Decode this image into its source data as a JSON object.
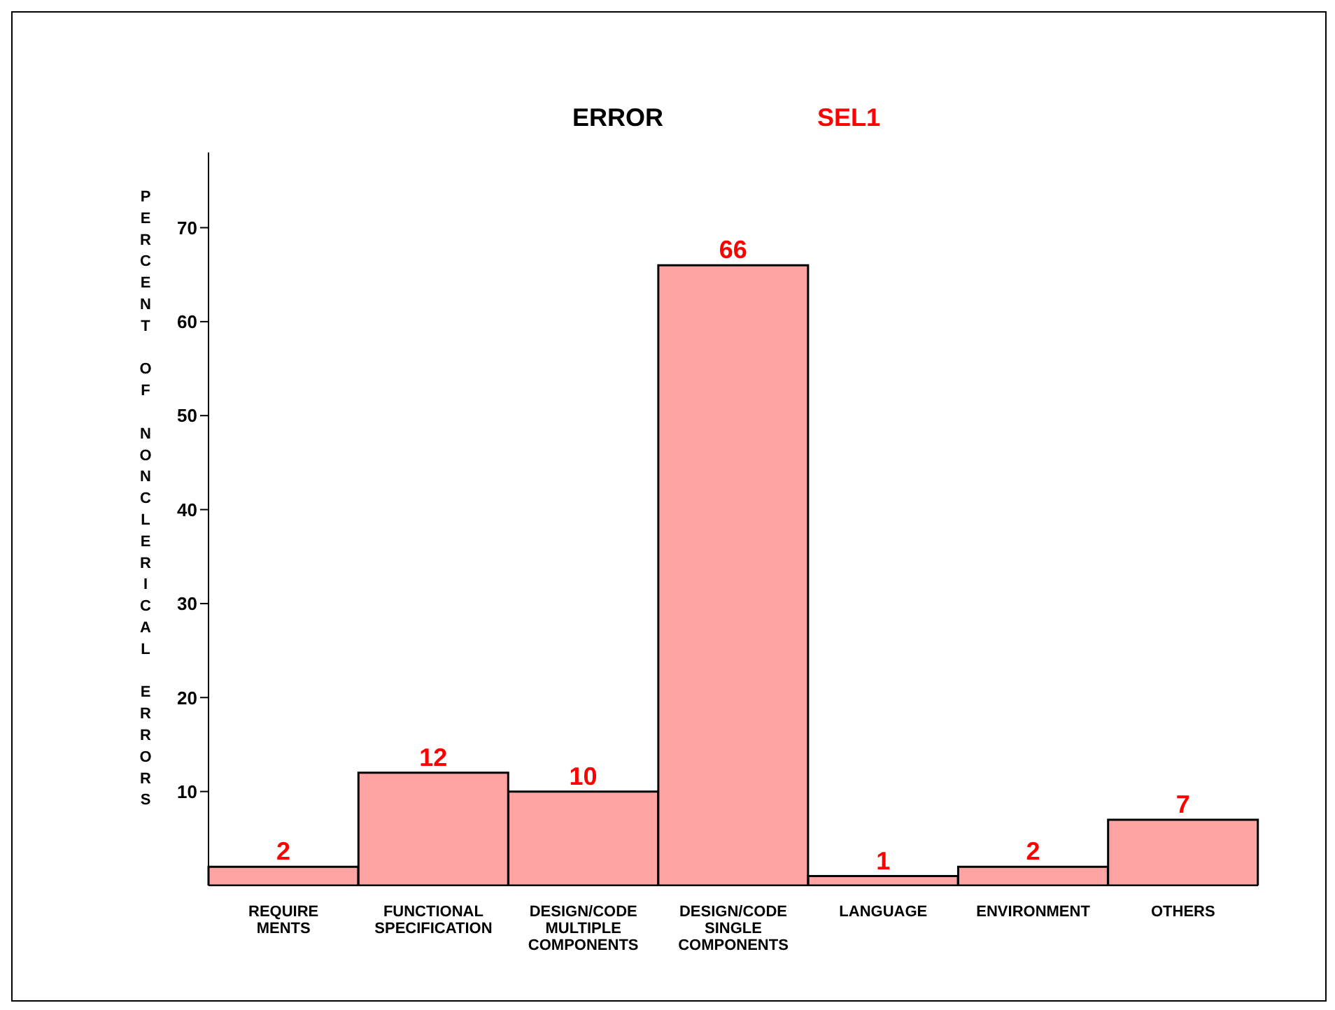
{
  "chart_data": {
    "type": "bar",
    "title": "ERROR",
    "subtitle": "SEL1",
    "ylabel": "PERCENT OF NONCLERICAL ERRORS",
    "categories": [
      "REQUIRE\nMENTS",
      "FUNCTIONAL\nSPECIFICATION",
      "DESIGN/CODE\nMULTIPLE\nCOMPONENTS",
      "DESIGN/CODE\nSINGLE\nCOMPONENTS",
      "LANGUAGE",
      "ENVIRONMENT",
      "OTHERS"
    ],
    "values": [
      2,
      12,
      10,
      66,
      1,
      2,
      7
    ],
    "color": "#ffa3a3",
    "ylim": [
      0,
      78
    ],
    "yticks": [
      10,
      20,
      30,
      40,
      50,
      60,
      70
    ],
    "data_labels": true,
    "grid": false,
    "legend": false
  }
}
